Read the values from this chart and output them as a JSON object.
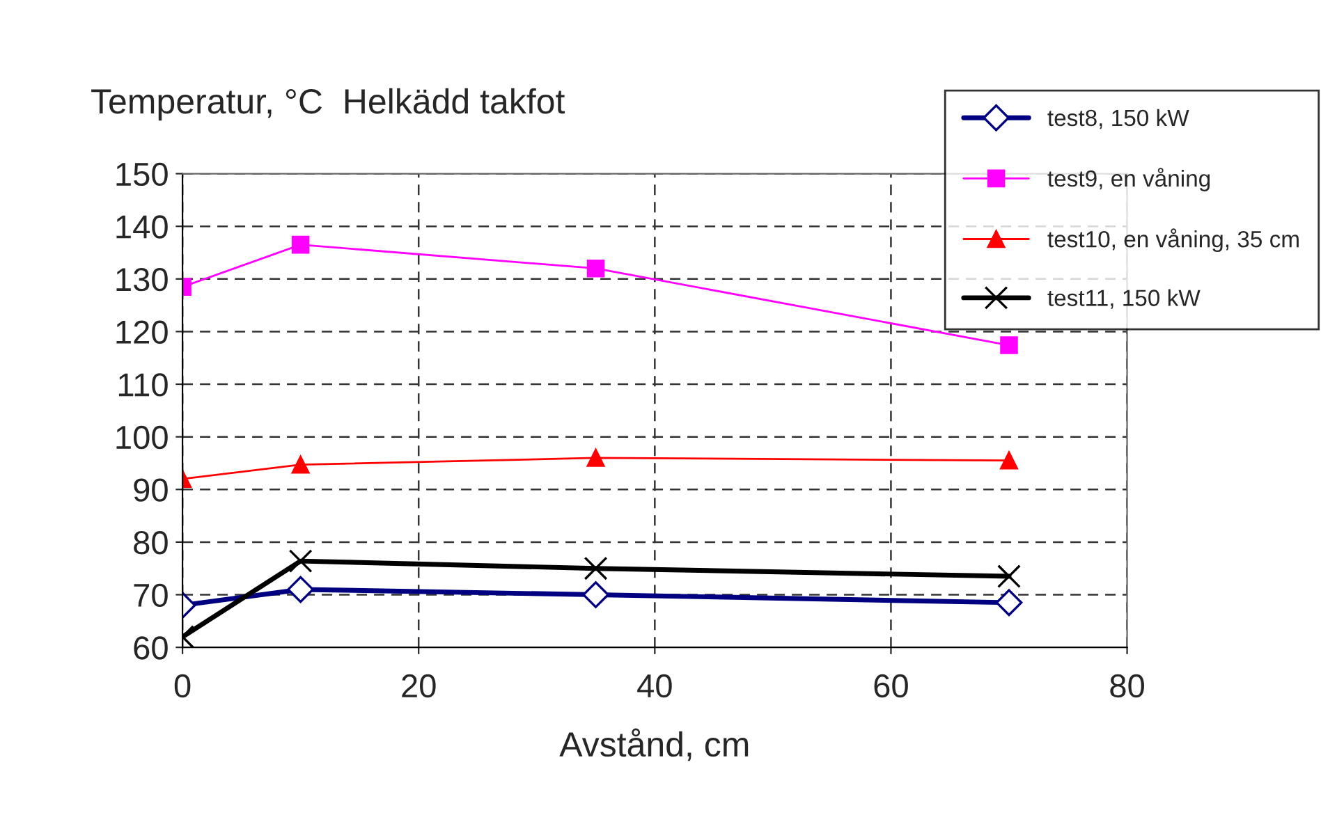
{
  "chart_data": {
    "type": "line",
    "title": "Temperatur, °C  Helkädd takfot",
    "xlabel": "Avstånd, cm",
    "x": [
      0,
      10,
      35,
      70
    ],
    "series": [
      {
        "name": "test8, 150 kW",
        "color": "#000080",
        "marker": "diamond",
        "values": [
          68,
          71,
          70,
          68.5
        ]
      },
      {
        "name": "test9, en våning",
        "color": "#ff00ff",
        "marker": "square",
        "values": [
          128.5,
          136.5,
          132,
          117.4
        ]
      },
      {
        "name": "test10, en våning, 35 cm",
        "color": "#ff0000",
        "marker": "triangle",
        "values": [
          92,
          94.7,
          96,
          95.5
        ]
      },
      {
        "name": "test11, 150 kW",
        "color": "#000000",
        "marker": "cross",
        "values": [
          62,
          76.4,
          75,
          73.5
        ]
      }
    ],
    "xlim": [
      0,
      80
    ],
    "xticks": [
      0,
      20,
      40,
      60,
      80
    ],
    "ylim": [
      60,
      150
    ],
    "yticks": [
      60,
      70,
      80,
      90,
      100,
      110,
      120,
      130,
      140,
      150
    ],
    "grid": true,
    "line_style": "solid",
    "legend": "top right"
  }
}
